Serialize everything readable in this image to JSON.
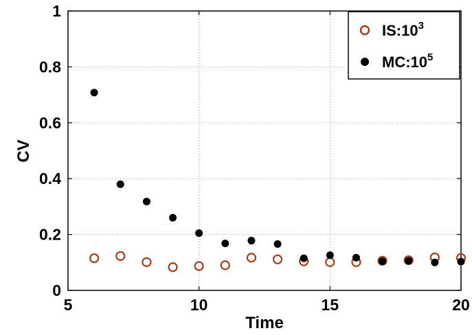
{
  "chart_data": {
    "type": "scatter",
    "xlabel": "Time",
    "ylabel": "CV",
    "xlim": [
      5,
      20
    ],
    "ylim": [
      0,
      1
    ],
    "xticks": [
      "5",
      "10",
      "15",
      "20"
    ],
    "yticks": [
      "0",
      "0.2",
      "0.4",
      "0.6",
      "0.8",
      "1"
    ],
    "grid": true,
    "legend_position": "top-right",
    "series": [
      {
        "name": "IS:10",
        "name_superscript": "3",
        "marker": "open-circle",
        "color": "#a0401a",
        "x": [
          6,
          7,
          8,
          9,
          10,
          11,
          12,
          13,
          14,
          15,
          16,
          17,
          18,
          19,
          20
        ],
        "y": [
          0.115,
          0.123,
          0.101,
          0.083,
          0.087,
          0.09,
          0.117,
          0.111,
          0.104,
          0.101,
          0.101,
          0.106,
          0.108,
          0.118,
          0.116
        ]
      },
      {
        "name": "MC:10",
        "name_superscript": "5",
        "marker": "filled-circle",
        "color": "#000000",
        "x": [
          6,
          7,
          8,
          9,
          10,
          11,
          12,
          13,
          14,
          15,
          16,
          17,
          18,
          19,
          20
        ],
        "y": [
          0.708,
          0.38,
          0.318,
          0.26,
          0.205,
          0.168,
          0.178,
          0.166,
          0.115,
          0.126,
          0.117,
          0.104,
          0.106,
          0.1,
          0.103
        ]
      }
    ]
  }
}
